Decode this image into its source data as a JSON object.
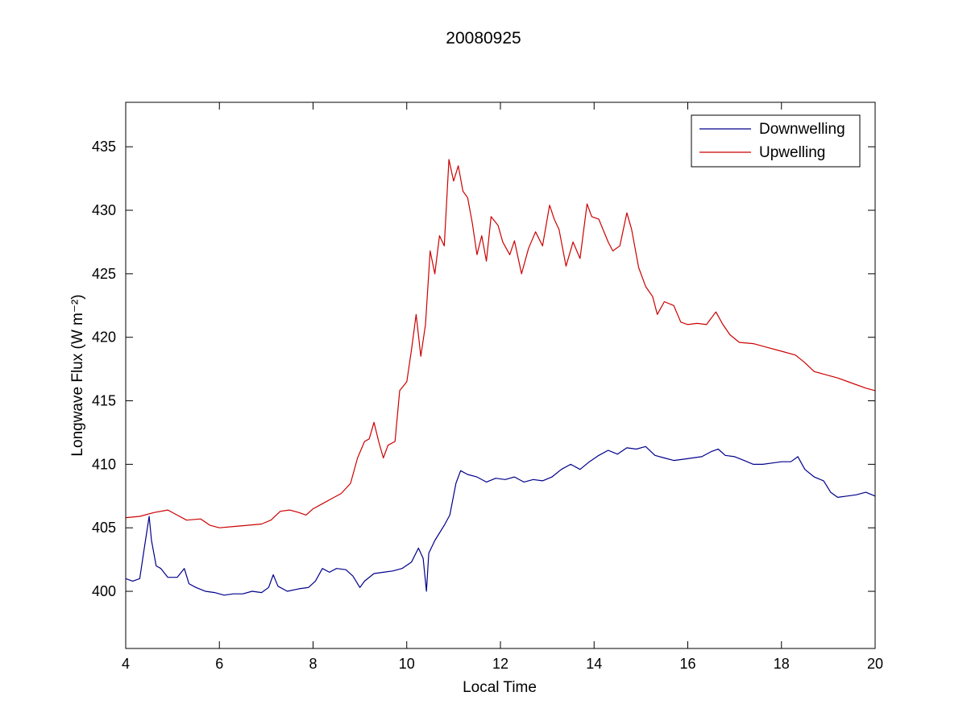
{
  "chart_data": {
    "type": "line",
    "title": "20080925",
    "xlabel": "Local Time",
    "ylabel": "Longwave Flux (W m⁻²)",
    "xlim": [
      4,
      20
    ],
    "ylim": [
      395.5,
      438.5
    ],
    "xticks": [
      4,
      6,
      8,
      10,
      12,
      14,
      16,
      18,
      20
    ],
    "yticks": [
      400,
      405,
      410,
      415,
      420,
      425,
      430,
      435
    ],
    "grid": false,
    "legend": "top-right",
    "series": [
      {
        "name": "Downwelling",
        "color": "#00008b",
        "points": [
          [
            4.0,
            401.0
          ],
          [
            4.15,
            400.8
          ],
          [
            4.3,
            401.0
          ],
          [
            4.4,
            403.5
          ],
          [
            4.5,
            405.9
          ],
          [
            4.55,
            404.0
          ],
          [
            4.65,
            402.0
          ],
          [
            4.75,
            401.8
          ],
          [
            4.9,
            401.1
          ],
          [
            5.1,
            401.1
          ],
          [
            5.25,
            401.8
          ],
          [
            5.35,
            400.6
          ],
          [
            5.5,
            400.3
          ],
          [
            5.7,
            400.0
          ],
          [
            5.9,
            399.9
          ],
          [
            6.1,
            399.7
          ],
          [
            6.3,
            399.8
          ],
          [
            6.5,
            399.8
          ],
          [
            6.7,
            400.0
          ],
          [
            6.9,
            399.9
          ],
          [
            7.05,
            400.3
          ],
          [
            7.15,
            401.3
          ],
          [
            7.25,
            400.4
          ],
          [
            7.45,
            400.0
          ],
          [
            7.7,
            400.2
          ],
          [
            7.9,
            400.3
          ],
          [
            8.05,
            400.8
          ],
          [
            8.2,
            401.8
          ],
          [
            8.35,
            401.5
          ],
          [
            8.5,
            401.8
          ],
          [
            8.7,
            401.7
          ],
          [
            8.85,
            401.2
          ],
          [
            9.0,
            400.3
          ],
          [
            9.1,
            400.8
          ],
          [
            9.3,
            401.4
          ],
          [
            9.5,
            401.5
          ],
          [
            9.7,
            401.6
          ],
          [
            9.9,
            401.8
          ],
          [
            10.1,
            402.3
          ],
          [
            10.25,
            403.4
          ],
          [
            10.35,
            402.6
          ],
          [
            10.42,
            400.0
          ],
          [
            10.47,
            403.0
          ],
          [
            10.6,
            404.0
          ],
          [
            10.8,
            405.2
          ],
          [
            10.92,
            406.0
          ],
          [
            11.05,
            408.5
          ],
          [
            11.15,
            409.5
          ],
          [
            11.3,
            409.2
          ],
          [
            11.5,
            409.0
          ],
          [
            11.7,
            408.6
          ],
          [
            11.9,
            408.9
          ],
          [
            12.1,
            408.8
          ],
          [
            12.3,
            409.0
          ],
          [
            12.5,
            408.6
          ],
          [
            12.7,
            408.8
          ],
          [
            12.9,
            408.7
          ],
          [
            13.1,
            409.0
          ],
          [
            13.3,
            409.6
          ],
          [
            13.5,
            410.0
          ],
          [
            13.7,
            409.6
          ],
          [
            13.9,
            410.2
          ],
          [
            14.1,
            410.7
          ],
          [
            14.3,
            411.1
          ],
          [
            14.5,
            410.8
          ],
          [
            14.7,
            411.3
          ],
          [
            14.9,
            411.2
          ],
          [
            15.1,
            411.4
          ],
          [
            15.3,
            410.7
          ],
          [
            15.5,
            410.5
          ],
          [
            15.7,
            410.3
          ],
          [
            15.9,
            410.4
          ],
          [
            16.1,
            410.5
          ],
          [
            16.3,
            410.6
          ],
          [
            16.5,
            411.0
          ],
          [
            16.65,
            411.2
          ],
          [
            16.8,
            410.7
          ],
          [
            17.0,
            410.6
          ],
          [
            17.2,
            410.3
          ],
          [
            17.4,
            410.0
          ],
          [
            17.6,
            410.0
          ],
          [
            17.8,
            410.1
          ],
          [
            18.0,
            410.2
          ],
          [
            18.2,
            410.2
          ],
          [
            18.35,
            410.6
          ],
          [
            18.5,
            409.6
          ],
          [
            18.7,
            409.0
          ],
          [
            18.9,
            408.7
          ],
          [
            19.05,
            407.8
          ],
          [
            19.2,
            407.4
          ],
          [
            19.4,
            407.5
          ],
          [
            19.6,
            407.6
          ],
          [
            19.8,
            407.8
          ],
          [
            20.0,
            407.5
          ]
        ]
      },
      {
        "name": "Upwelling",
        "color": "#cc0000",
        "points": [
          [
            4.0,
            405.8
          ],
          [
            4.3,
            405.9
          ],
          [
            4.6,
            406.2
          ],
          [
            4.9,
            406.4
          ],
          [
            5.05,
            406.1
          ],
          [
            5.3,
            405.6
          ],
          [
            5.6,
            405.7
          ],
          [
            5.8,
            405.2
          ],
          [
            6.0,
            405.0
          ],
          [
            6.3,
            405.1
          ],
          [
            6.6,
            405.2
          ],
          [
            6.9,
            405.3
          ],
          [
            7.1,
            405.6
          ],
          [
            7.3,
            406.3
          ],
          [
            7.5,
            406.4
          ],
          [
            7.7,
            406.2
          ],
          [
            7.85,
            406.0
          ],
          [
            8.0,
            406.5
          ],
          [
            8.2,
            406.9
          ],
          [
            8.4,
            407.3
          ],
          [
            8.6,
            407.7
          ],
          [
            8.8,
            408.5
          ],
          [
            8.95,
            410.5
          ],
          [
            9.1,
            411.8
          ],
          [
            9.2,
            412.0
          ],
          [
            9.3,
            413.3
          ],
          [
            9.4,
            411.8
          ],
          [
            9.5,
            410.5
          ],
          [
            9.6,
            411.5
          ],
          [
            9.75,
            411.8
          ],
          [
            9.85,
            415.8
          ],
          [
            10.0,
            416.5
          ],
          [
            10.1,
            419.0
          ],
          [
            10.2,
            421.8
          ],
          [
            10.3,
            418.5
          ],
          [
            10.4,
            421.0
          ],
          [
            10.5,
            426.8
          ],
          [
            10.6,
            425.0
          ],
          [
            10.7,
            428.0
          ],
          [
            10.8,
            427.2
          ],
          [
            10.9,
            434.0
          ],
          [
            11.0,
            432.3
          ],
          [
            11.1,
            433.5
          ],
          [
            11.2,
            431.5
          ],
          [
            11.3,
            431.0
          ],
          [
            11.4,
            429.0
          ],
          [
            11.5,
            426.5
          ],
          [
            11.6,
            428.0
          ],
          [
            11.7,
            426.0
          ],
          [
            11.8,
            429.5
          ],
          [
            11.95,
            428.8
          ],
          [
            12.05,
            427.5
          ],
          [
            12.2,
            426.5
          ],
          [
            12.3,
            427.6
          ],
          [
            12.45,
            425.0
          ],
          [
            12.6,
            427.0
          ],
          [
            12.75,
            428.3
          ],
          [
            12.9,
            427.2
          ],
          [
            13.05,
            430.4
          ],
          [
            13.15,
            429.3
          ],
          [
            13.25,
            428.5
          ],
          [
            13.4,
            425.6
          ],
          [
            13.55,
            427.5
          ],
          [
            13.7,
            426.2
          ],
          [
            13.85,
            430.5
          ],
          [
            13.95,
            429.5
          ],
          [
            14.1,
            429.3
          ],
          [
            14.3,
            427.5
          ],
          [
            14.4,
            426.8
          ],
          [
            14.55,
            427.2
          ],
          [
            14.7,
            429.8
          ],
          [
            14.8,
            428.5
          ],
          [
            14.95,
            425.5
          ],
          [
            15.1,
            424.0
          ],
          [
            15.25,
            423.2
          ],
          [
            15.35,
            421.8
          ],
          [
            15.5,
            422.8
          ],
          [
            15.7,
            422.5
          ],
          [
            15.85,
            421.2
          ],
          [
            16.0,
            421.0
          ],
          [
            16.2,
            421.1
          ],
          [
            16.4,
            421.0
          ],
          [
            16.6,
            422.0
          ],
          [
            16.75,
            421.0
          ],
          [
            16.9,
            420.2
          ],
          [
            17.1,
            419.6
          ],
          [
            17.4,
            419.5
          ],
          [
            17.7,
            419.2
          ],
          [
            18.0,
            418.9
          ],
          [
            18.3,
            418.6
          ],
          [
            18.5,
            418.0
          ],
          [
            18.7,
            417.3
          ],
          [
            18.9,
            417.1
          ],
          [
            19.2,
            416.8
          ],
          [
            19.5,
            416.4
          ],
          [
            19.8,
            416.0
          ],
          [
            20.0,
            415.8
          ]
        ]
      }
    ]
  }
}
